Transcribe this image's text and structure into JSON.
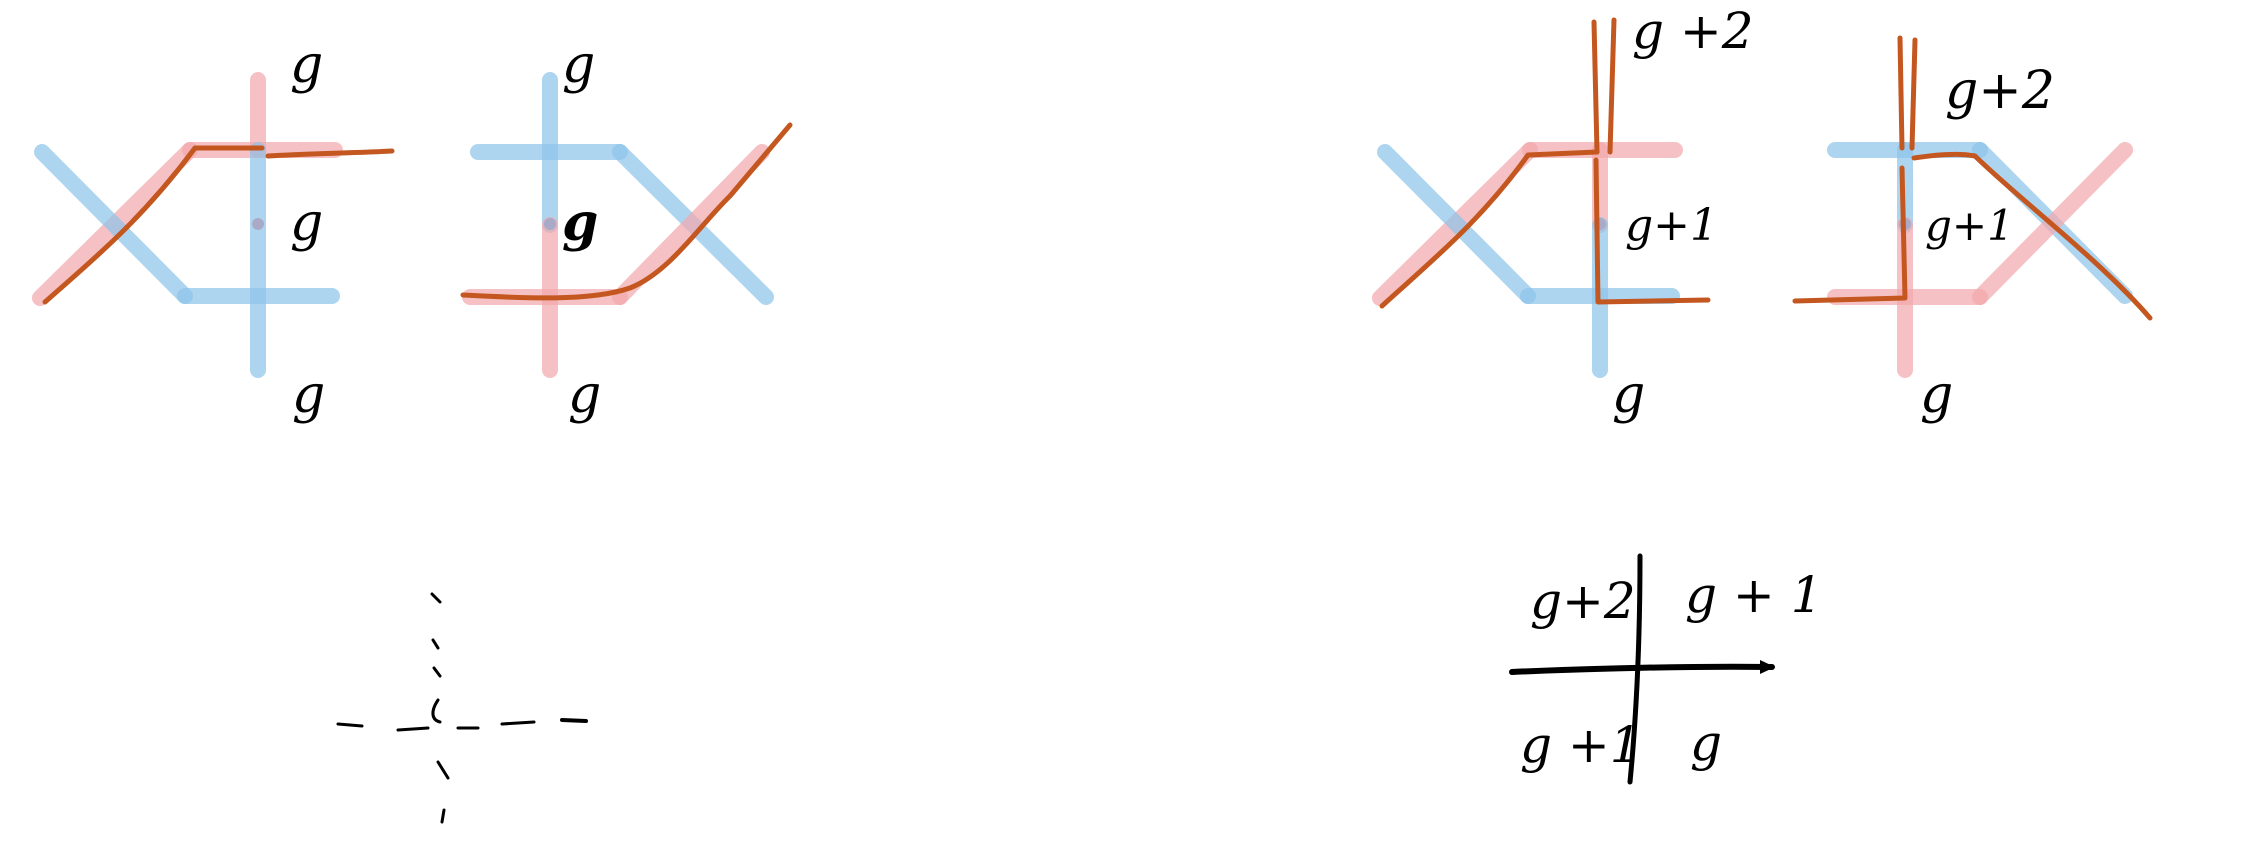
{
  "panel_a": {
    "top": "g",
    "center": "g",
    "bottom": "g"
  },
  "panel_b": {
    "top": "g",
    "center": "g",
    "bottom": "g"
  },
  "panel_c": {
    "top": "g +2",
    "center": "g+1",
    "bottom": "g"
  },
  "panel_d": {
    "top": "g+2",
    "center": "g+1",
    "bottom": "g"
  },
  "quadrant": {
    "top_left": "g+2",
    "top_right": "g + 1",
    "bottom_left": "g +1",
    "bottom_right": "g"
  },
  "colors": {
    "pink": "#f2a7ab",
    "blue": "#8cc3ea",
    "orange": "#c4571f",
    "ink": "#000000"
  }
}
